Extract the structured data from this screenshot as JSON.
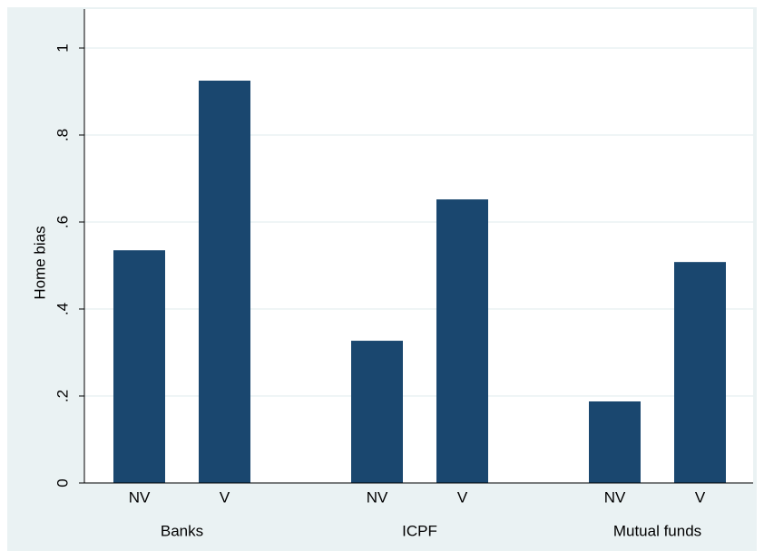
{
  "chart_data": {
    "type": "bar",
    "y_label": "Home bias",
    "groups": [
      "Banks",
      "ICPF",
      "Mutual funds"
    ],
    "categories": [
      "NV",
      "V",
      "NV",
      "V",
      "NV",
      "V"
    ],
    "values": [
      0.535,
      0.925,
      0.327,
      0.652,
      0.1875,
      0.508
    ],
    "color": "#1a476f",
    "ylim": [
      0,
      1
    ],
    "yticks": [
      0,
      {
        "value": 0.2,
        "label": ".2"
      },
      {
        "value": 0.4,
        "label": ".4"
      },
      {
        "value": 0.6,
        "label": ".6"
      },
      {
        "value": 0.8,
        "label": ".8"
      },
      1
    ],
    "grid": true
  }
}
